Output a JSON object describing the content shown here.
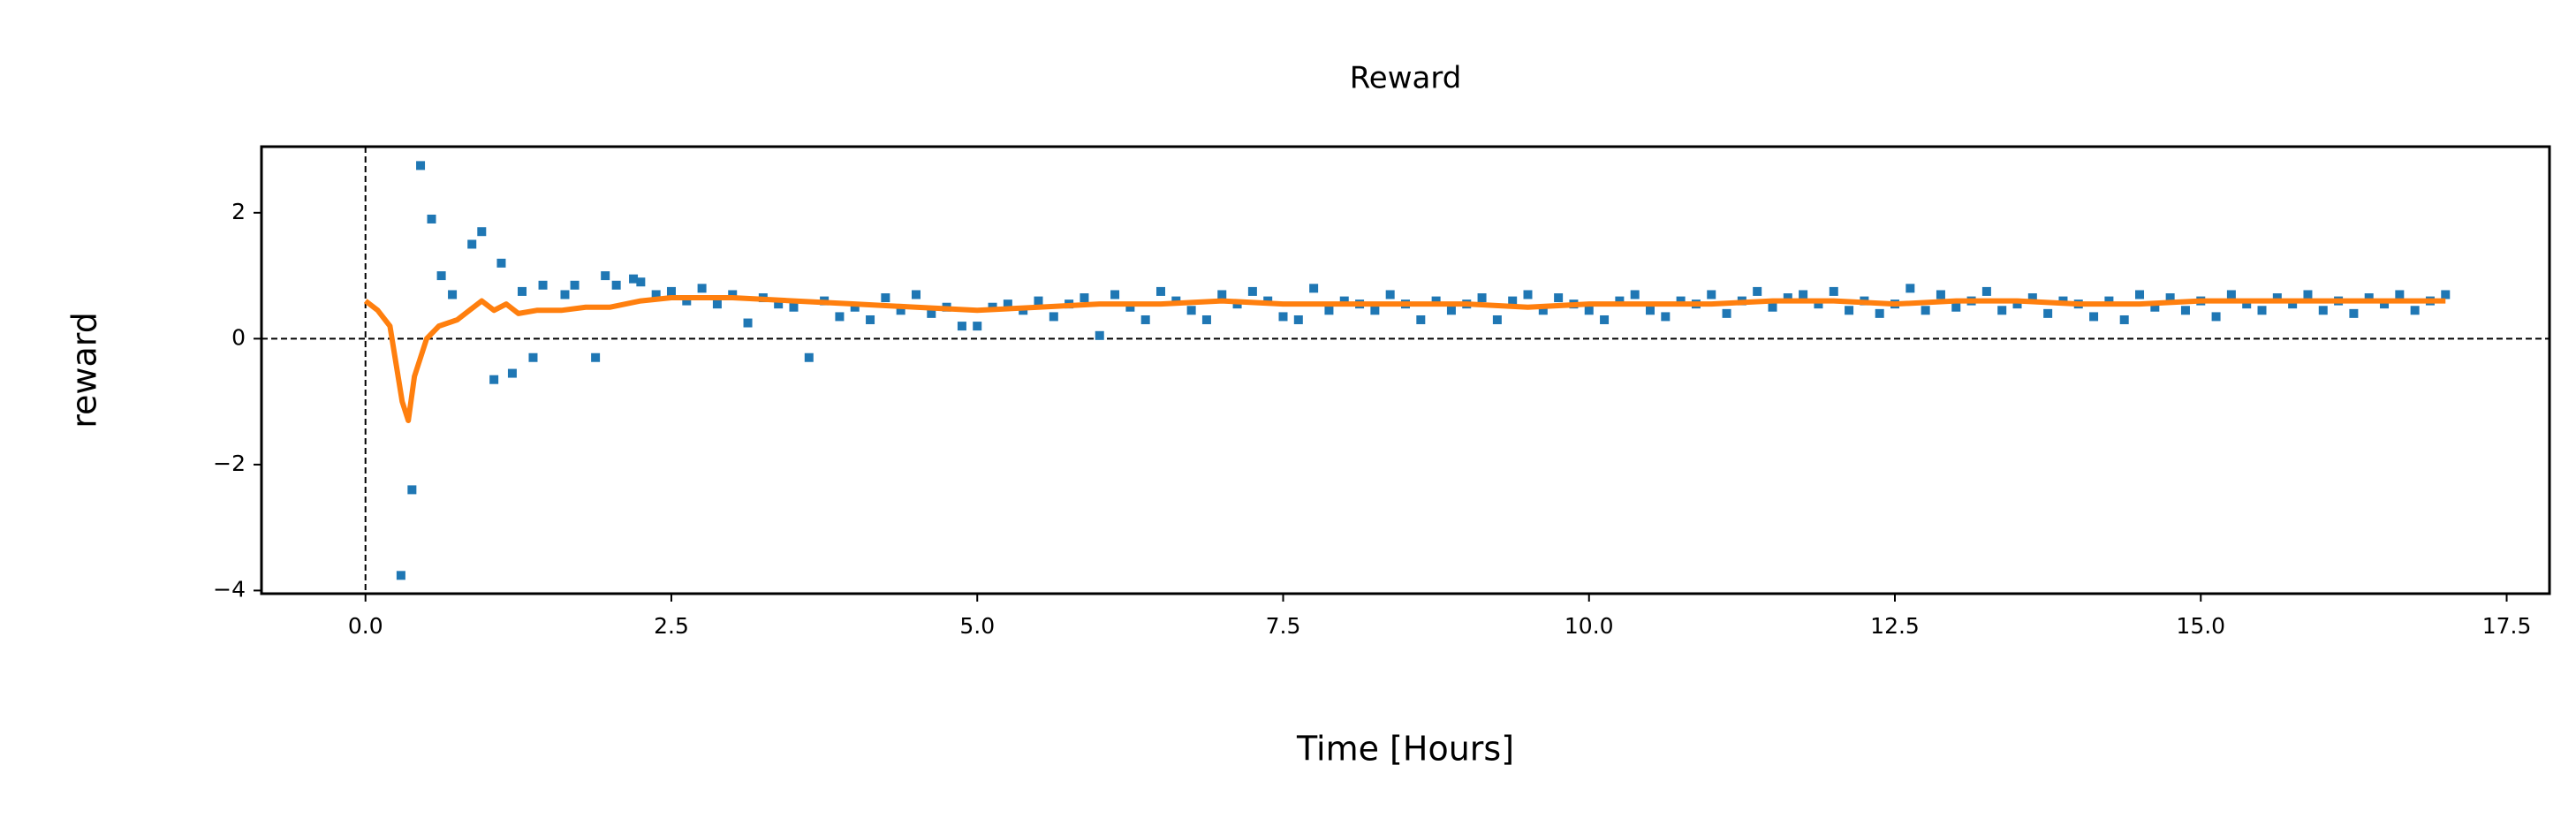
{
  "chart_data": {
    "type": "scatter",
    "title": "Reward",
    "xlabel": "Time [Hours]",
    "ylabel": "reward",
    "xlim": [
      -0.85,
      17.85
    ],
    "ylim": [
      -4.05,
      3.05
    ],
    "xticks": [
      {
        "value": 0,
        "label": "0.0"
      },
      2.5,
      {
        "value": 5,
        "label": "5.0"
      },
      7.5,
      {
        "value": 10,
        "label": "10.0"
      },
      12.5,
      {
        "value": 15,
        "label": "15.0"
      },
      17.5
    ],
    "yticks": [
      {
        "value": -4,
        "label": "−4"
      },
      {
        "value": -2,
        "label": "−2"
      },
      0,
      2
    ],
    "reference_lines": {
      "x": 0,
      "y": 0
    },
    "grid": false,
    "series": [
      {
        "type": "scatter",
        "color": "#1f77b4",
        "x": [
          0.29,
          0.38,
          0.45,
          0.54,
          0.62,
          0.71,
          0.87,
          0.95,
          1.05,
          1.11,
          1.2,
          1.28,
          1.37,
          1.45,
          1.63,
          1.71,
          1.88,
          1.96,
          2.05,
          2.19,
          2.25,
          2.375,
          2.5,
          2.625,
          2.75,
          2.875,
          3.0,
          3.125,
          3.25,
          3.375,
          3.5,
          3.625,
          3.75,
          3.875,
          4.0,
          4.125,
          4.25,
          4.375,
          4.5,
          4.625,
          4.75,
          4.875,
          5.0,
          5.125,
          5.25,
          5.375,
          5.5,
          5.625,
          5.75,
          5.875,
          6.0,
          6.125,
          6.25,
          6.375,
          6.5,
          6.625,
          6.75,
          6.875,
          7.0,
          7.125,
          7.25,
          7.375,
          7.5,
          7.625,
          7.75,
          7.875,
          8.0,
          8.125,
          8.25,
          8.375,
          8.5,
          8.625,
          8.75,
          8.875,
          9.0,
          9.125,
          9.25,
          9.375,
          9.5,
          9.625,
          9.75,
          9.875,
          10.0,
          10.125,
          10.25,
          10.375,
          10.5,
          10.625,
          10.75,
          10.875,
          11.0,
          11.125,
          11.25,
          11.375,
          11.5,
          11.625,
          11.75,
          11.875,
          12.0,
          12.125,
          12.25,
          12.375,
          12.5,
          12.625,
          12.75,
          12.875,
          13.0,
          13.125,
          13.25,
          13.375,
          13.5,
          13.625,
          13.75,
          13.875,
          14.0,
          14.125,
          14.25,
          14.375,
          14.5,
          14.625,
          14.75,
          14.875,
          15.0,
          15.125,
          15.25,
          15.375,
          15.5,
          15.625,
          15.75,
          15.875,
          16.0,
          16.125,
          16.25,
          16.375,
          16.5,
          16.625,
          16.75,
          16.875,
          17.0
        ],
        "values": [
          -3.76,
          -2.4,
          2.75,
          1.9,
          1.0,
          0.7,
          1.5,
          1.7,
          -0.65,
          1.2,
          -0.55,
          0.75,
          -0.3,
          0.85,
          0.7,
          0.85,
          -0.3,
          1.0,
          0.85,
          0.95,
          0.9,
          0.7,
          0.75,
          0.6,
          0.8,
          0.55,
          0.7,
          0.25,
          0.65,
          0.55,
          0.5,
          -0.3,
          0.6,
          0.35,
          0.5,
          0.3,
          0.65,
          0.45,
          0.7,
          0.4,
          0.5,
          0.2,
          0.2,
          0.5,
          0.55,
          0.45,
          0.6,
          0.35,
          0.55,
          0.65,
          0.05,
          0.7,
          0.5,
          0.3,
          0.75,
          0.6,
          0.45,
          0.3,
          0.7,
          0.55,
          0.75,
          0.6,
          0.35,
          0.3,
          0.8,
          0.45,
          0.6,
          0.55,
          0.45,
          0.7,
          0.55,
          0.3,
          0.6,
          0.45,
          0.55,
          0.65,
          0.3,
          0.6,
          0.7,
          0.45,
          0.65,
          0.55,
          0.45,
          0.3,
          0.6,
          0.7,
          0.45,
          0.35,
          0.6,
          0.55,
          0.7,
          0.4,
          0.6,
          0.75,
          0.5,
          0.65,
          0.7,
          0.55,
          0.75,
          0.45,
          0.6,
          0.4,
          0.55,
          0.8,
          0.45,
          0.7,
          0.5,
          0.6,
          0.75,
          0.45,
          0.55,
          0.65,
          0.4,
          0.6,
          0.55,
          0.35,
          0.6,
          0.3,
          0.7,
          0.5,
          0.65,
          0.45,
          0.6,
          0.35,
          0.7,
          0.55,
          0.45,
          0.65,
          0.55,
          0.7,
          0.45,
          0.6,
          0.4,
          0.65,
          0.55,
          0.7,
          0.45,
          0.6,
          0.7
        ]
      },
      {
        "type": "line",
        "color": "#ff7f0e",
        "x": [
          0,
          0.1,
          0.2,
          0.3,
          0.35,
          0.4,
          0.5,
          0.6,
          0.75,
          0.85,
          0.95,
          1.05,
          1.15,
          1.25,
          1.4,
          1.6,
          1.8,
          2.0,
          2.25,
          2.5,
          3.0,
          3.5,
          4.0,
          4.5,
          5.0,
          5.5,
          6.0,
          6.5,
          7.0,
          7.5,
          8.0,
          8.5,
          9.0,
          9.5,
          10.0,
          10.5,
          11.0,
          11.5,
          12.0,
          12.5,
          13.0,
          13.5,
          14.0,
          14.5,
          15.0,
          15.5,
          16.0,
          16.5,
          17.0
        ],
        "values": [
          0.6,
          0.45,
          0.2,
          -1.0,
          -1.3,
          -0.6,
          0.0,
          0.2,
          0.3,
          0.45,
          0.6,
          0.45,
          0.55,
          0.4,
          0.45,
          0.45,
          0.5,
          0.5,
          0.6,
          0.65,
          0.65,
          0.6,
          0.55,
          0.5,
          0.45,
          0.5,
          0.55,
          0.55,
          0.6,
          0.55,
          0.55,
          0.55,
          0.55,
          0.5,
          0.55,
          0.55,
          0.55,
          0.6,
          0.6,
          0.55,
          0.6,
          0.6,
          0.55,
          0.55,
          0.6,
          0.6,
          0.6,
          0.6,
          0.6
        ]
      }
    ]
  }
}
